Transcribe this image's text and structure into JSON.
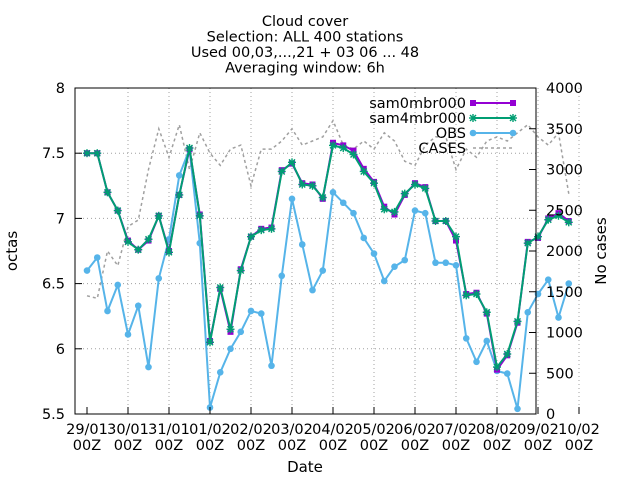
{
  "chart_data": {
    "type": "line",
    "title_lines": [
      "Cloud cover",
      "Selection: ALL    400 stations",
      "Used 00,03,...,21 + 03 06 ... 48",
      "Averaging window:  6h"
    ],
    "xlabel": "Date",
    "ylabel": "octas",
    "y2label": "No cases",
    "ylim": [
      5.5,
      8
    ],
    "y2lim": [
      0,
      4000
    ],
    "yticks": [
      "5.5",
      "6",
      "6.5",
      "7",
      "7.5",
      "8"
    ],
    "y2ticks": [
      "0",
      "500",
      "1000",
      "1500",
      "2000",
      "2500",
      "3000",
      "3500",
      "4000"
    ],
    "xticks": [
      {
        "date": "29/01",
        "hour": "00Z"
      },
      {
        "date": "30/01",
        "hour": "00Z"
      },
      {
        "date": "31/01",
        "hour": "00Z"
      },
      {
        "date": "01/02",
        "hour": "00Z"
      },
      {
        "date": "02/02",
        "hour": "00Z"
      },
      {
        "date": "03/02",
        "hour": "00Z"
      },
      {
        "date": "04/02",
        "hour": "00Z"
      },
      {
        "date": "05/02",
        "hour": "00Z"
      },
      {
        "date": "06/02",
        "hour": "00Z"
      },
      {
        "date": "07/02",
        "hour": "00Z"
      },
      {
        "date": "08/02",
        "hour": "00Z"
      },
      {
        "date": "09/02",
        "hour": "00Z"
      },
      {
        "date": "10/02",
        "hour": "00Z"
      }
    ],
    "x_interval_hours": 6,
    "grid": true,
    "legend_position": "top-right",
    "series": [
      {
        "name": "sam0mbr000",
        "color": "#9400d3",
        "axis": "left",
        "marker": "square",
        "values": [
          7.5,
          7.5,
          7.2,
          7.06,
          6.83,
          6.76,
          6.83,
          7.02,
          6.75,
          7.18,
          7.53,
          7.03,
          6.06,
          6.46,
          6.13,
          6.61,
          6.86,
          6.92,
          6.93,
          7.37,
          7.42,
          7.27,
          7.26,
          7.15,
          7.58,
          7.56,
          7.52,
          7.38,
          7.28,
          7.09,
          7.03,
          7.18,
          7.27,
          7.24,
          6.98,
          6.98,
          6.83,
          6.42,
          6.43,
          6.27,
          5.84,
          5.95,
          6.2,
          6.82,
          6.85,
          7.0,
          7.04,
          6.98
        ]
      },
      {
        "name": "sam4mbr000",
        "color": "#009e73",
        "axis": "left",
        "marker": "star",
        "values": [
          7.5,
          7.5,
          7.2,
          7.06,
          6.82,
          6.76,
          6.84,
          7.02,
          6.74,
          7.18,
          7.54,
          7.02,
          6.05,
          6.47,
          6.15,
          6.6,
          6.86,
          6.91,
          6.92,
          7.36,
          7.43,
          7.26,
          7.25,
          7.16,
          7.56,
          7.54,
          7.49,
          7.36,
          7.27,
          7.07,
          7.05,
          7.19,
          7.26,
          7.23,
          6.98,
          6.98,
          6.86,
          6.41,
          6.42,
          6.28,
          5.86,
          5.96,
          6.21,
          6.81,
          6.86,
          6.99,
          7.02,
          6.97
        ]
      },
      {
        "name": "OBS",
        "color": "#56b4e9",
        "axis": "left",
        "marker": "circle",
        "values": [
          6.6,
          6.7,
          6.29,
          6.49,
          6.11,
          6.33,
          5.86,
          6.54,
          6.84,
          7.33,
          7.53,
          6.81,
          5.55,
          5.82,
          6.0,
          6.13,
          6.29,
          6.27,
          5.87,
          6.56,
          7.15,
          6.8,
          6.45,
          6.6,
          7.2,
          7.12,
          7.04,
          6.85,
          6.73,
          6.52,
          6.63,
          6.68,
          7.06,
          7.04,
          6.66,
          6.66,
          6.64,
          6.08,
          5.9,
          6.06,
          5.83,
          5.81,
          5.54,
          6.28,
          6.42,
          6.53,
          6.24,
          6.5
        ]
      },
      {
        "name": "CASES",
        "color": "#a0a0a0",
        "axis": "right",
        "dashed": true,
        "values": [
          1450,
          1420,
          2000,
          1820,
          2300,
          2380,
          3000,
          3500,
          3150,
          3550,
          3000,
          3450,
          3200,
          3050,
          3250,
          3300,
          2800,
          3250,
          3250,
          3350,
          3500,
          3300,
          3350,
          3400,
          3600,
          3300,
          3250,
          3350,
          3250,
          3450,
          3350,
          3100,
          3050,
          3300,
          3400,
          3400,
          3000,
          3250,
          3150,
          3350,
          3400,
          3350,
          3450,
          3550,
          3400,
          3300,
          3450,
          2700
        ]
      }
    ]
  }
}
